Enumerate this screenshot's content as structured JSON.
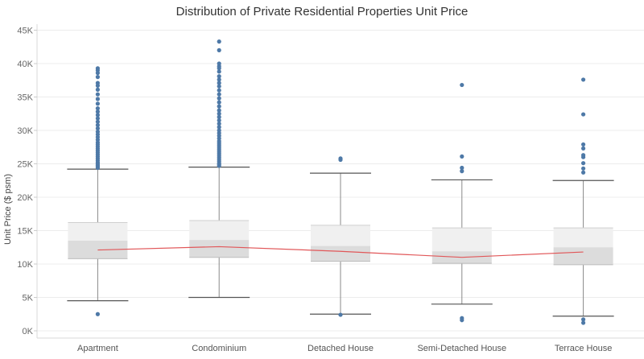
{
  "chart_data": {
    "type": "boxplot",
    "title": "Distribution of Private Residential Properties Unit Price",
    "xlabel": "",
    "ylabel": "Unit Price ($ psm)",
    "ylim": [
      0,
      45000
    ],
    "yticks": [
      0,
      5000,
      10000,
      15000,
      20000,
      25000,
      30000,
      35000,
      40000,
      45000
    ],
    "ytick_labels": [
      "0K",
      "5K",
      "10K",
      "15K",
      "20K",
      "25K",
      "30K",
      "35K",
      "40K",
      "45K"
    ],
    "grid": true,
    "colors": {
      "box_upper": "#f0f0f0",
      "box_lower": "#dcdcdc",
      "whisker": "#555555",
      "outlier": "#4e79a7",
      "line": "#e15759",
      "grid": "#ececec"
    },
    "categories": [
      "Apartment",
      "Condominium",
      "Detached House",
      "Semi-Detached House",
      "Terrace House"
    ],
    "boxes": [
      {
        "q1": 10800,
        "median": 13500,
        "q3": 16200,
        "whisker_low": 4500,
        "whisker_high": 24200,
        "outliers": [
          2500,
          24400,
          24600,
          24800,
          25000,
          25200,
          25500,
          25800,
          26100,
          26400,
          26700,
          27000,
          27300,
          27600,
          27900,
          28200,
          28600,
          29000,
          29400,
          29800,
          30300,
          30800,
          31300,
          31800,
          32300,
          32800,
          33300,
          34000,
          34700,
          35400,
          36100,
          36700,
          37100,
          38000,
          38600,
          39000,
          39300
        ]
      },
      {
        "q1": 11000,
        "median": 13600,
        "q3": 16500,
        "whisker_low": 5000,
        "whisker_high": 24500,
        "outliers": [
          24700,
          24900,
          25100,
          25400,
          25700,
          26000,
          26300,
          26600,
          26900,
          27200,
          27500,
          27800,
          28100,
          28400,
          28800,
          29200,
          29600,
          30000,
          30500,
          31000,
          31500,
          32000,
          32500,
          33000,
          33600,
          34200,
          34800,
          35400,
          36000,
          36600,
          37100,
          37600,
          38100,
          38800,
          39300,
          39600,
          40000,
          42000,
          43300
        ]
      },
      {
        "q1": 10400,
        "median": 12700,
        "q3": 15800,
        "whisker_low": 2500,
        "whisker_high": 23600,
        "outliers": [
          2400,
          25600,
          25800
        ]
      },
      {
        "q1": 10100,
        "median": 11900,
        "q3": 15400,
        "whisker_low": 4000,
        "whisker_high": 22600,
        "outliers": [
          1600,
          1900,
          23900,
          24400,
          26100,
          36800
        ]
      },
      {
        "q1": 9900,
        "median": 12500,
        "q3": 15400,
        "whisker_low": 2200,
        "whisker_high": 22500,
        "outliers": [
          1200,
          1700,
          23700,
          24300,
          25100,
          26000,
          26300,
          27300,
          27900,
          32400,
          37600
        ]
      }
    ],
    "series": [
      {
        "type": "line",
        "values": [
          12100,
          12600,
          11900,
          11000,
          11800
        ]
      }
    ]
  }
}
